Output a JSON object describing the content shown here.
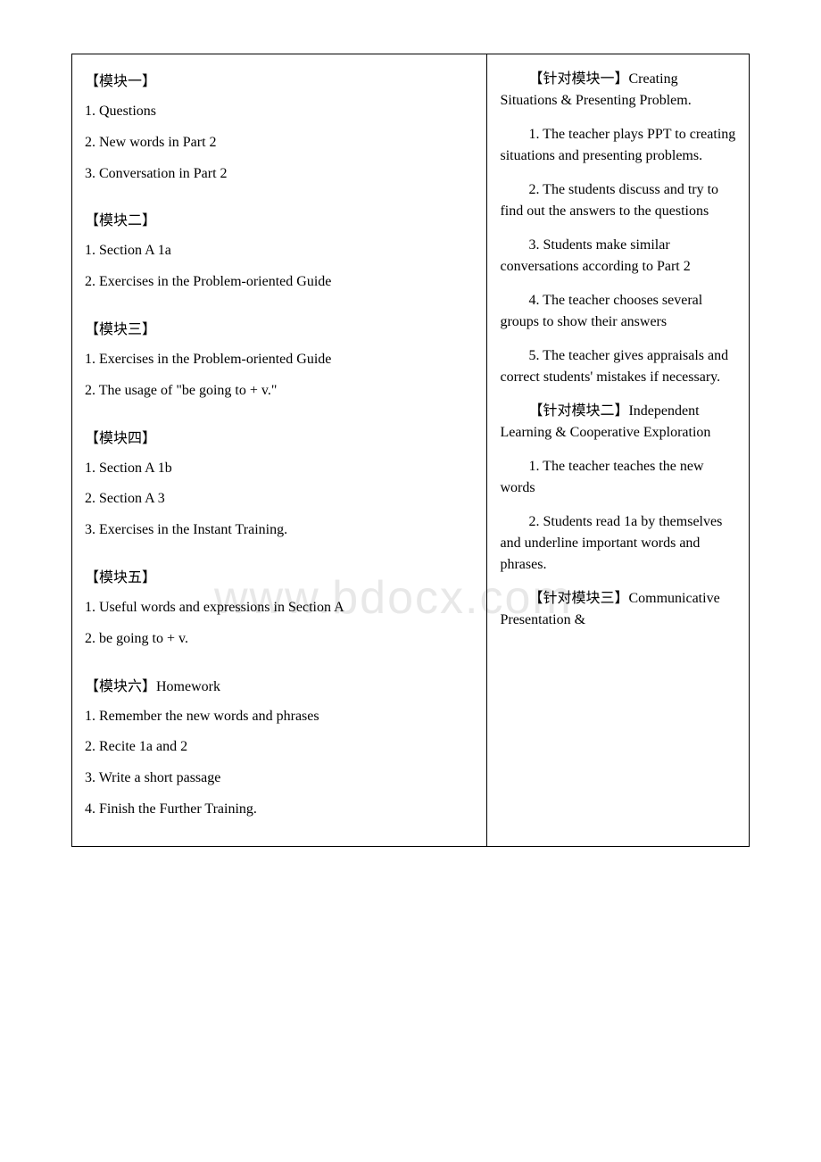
{
  "watermark": "www.bdocx.com",
  "left": {
    "modules": [
      {
        "header": "【模块一】",
        "items": [
          "1. Questions",
          "2. New words in Part 2",
          "3. Conversation in Part 2"
        ]
      },
      {
        "header": "【模块二】",
        "items": [
          "1. Section A 1a",
          "2. Exercises in the Problem-oriented Guide"
        ]
      },
      {
        "header": "【模块三】",
        "items": [
          "1. Exercises in the Problem-oriented Guide",
          "2. The usage of \"be going to + v.\""
        ]
      },
      {
        "header": "【模块四】",
        "items": [
          "1. Section A 1b",
          "2. Section A 3",
          "3. Exercises in the Instant Training."
        ]
      },
      {
        "header": "【模块五】",
        "items": [
          "1. Useful words and expressions in Section A",
          "2. be going to + v."
        ]
      },
      {
        "header": "【模块六】Homework",
        "items": [
          "1. Remember the new words and phrases",
          "2. Recite 1a and 2",
          "3. Write a short passage",
          "4. Finish the Further Training."
        ]
      }
    ]
  },
  "right": {
    "section1": {
      "header": "【针对模块一】Creating Situations & Presenting Problem.",
      "items": [
        "1. The teacher plays PPT to creating situations and presenting problems.",
        "2. The students discuss and try to find out the answers to the questions",
        "3. Students make similar conversations according to Part 2",
        "4. The teacher chooses several groups to show their answers",
        "5. The teacher gives appraisals and correct students' mistakes if necessary."
      ]
    },
    "section2": {
      "header": "【针对模块二】Independent Learning & Cooperative Exploration",
      "items": [
        "1. The teacher teaches the new words",
        "2. Students read 1a by themselves and underline important words and phrases."
      ]
    },
    "section3": {
      "header": "【针对模块三】Communicative Presentation &"
    }
  }
}
